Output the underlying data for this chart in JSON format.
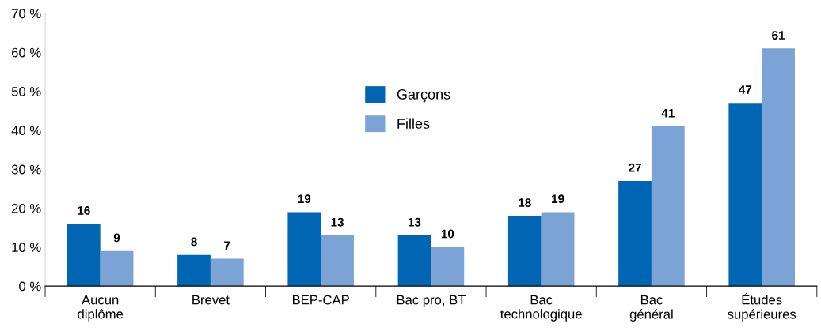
{
  "chart_data": {
    "type": "bar",
    "categories": [
      "Aucun\ndiplôme",
      "Brevet",
      "BEP-CAP",
      "Bac pro, BT",
      "Bac\ntechnologique",
      "Bac\ngénéral",
      "Études\nsupérieures"
    ],
    "series": [
      {
        "name": "Garçons",
        "color": "#0066b3",
        "values": [
          16,
          8,
          19,
          13,
          18,
          27,
          47
        ]
      },
      {
        "name": "Filles",
        "color": "#7ba3d6",
        "values": [
          9,
          7,
          13,
          10,
          19,
          41,
          61
        ]
      }
    ],
    "ylim": [
      0,
      70
    ],
    "yticks": [
      {
        "value": 0,
        "label": "0 %"
      },
      {
        "value": 10,
        "label": "10 %"
      },
      {
        "value": 20,
        "label": "20 %"
      },
      {
        "value": 30,
        "label": "30 %"
      },
      {
        "value": 40,
        "label": "40 %"
      },
      {
        "value": 50,
        "label": "50 %"
      },
      {
        "value": 60,
        "label": "60 %"
      },
      {
        "value": 70,
        "label": "70 %"
      }
    ],
    "data_labels": true,
    "grid": false,
    "legend": "top"
  }
}
